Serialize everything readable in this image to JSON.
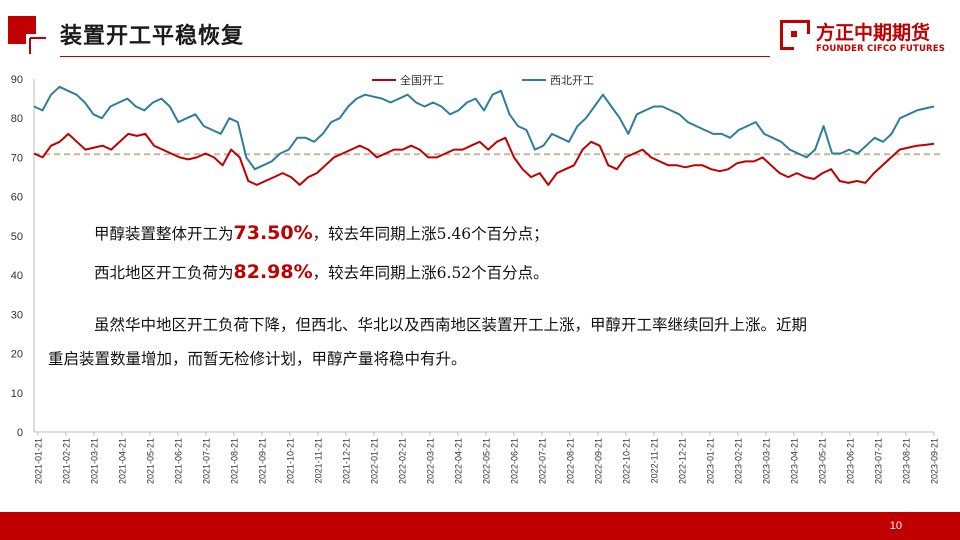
{
  "header": {
    "title": "装置开工平稳恢复",
    "brand_cn": "方正中期期货",
    "brand_en": "FOUNDER CIFCO FUTURES",
    "accent_color": "#c00000"
  },
  "notes": {
    "line1_pre": "甲醇装置整体开工为",
    "line1_value": "73.50%",
    "line1_post": "，较去年同期上涨5.46个百分点；",
    "line2_pre": "西北地区开工负荷为",
    "line2_value": "82.98%",
    "line2_post": "，较去年同期上涨6.52个百分点。",
    "para_line1": "虽然华中地区开工负荷下降，但西北、华北以及西南地区装置开工上涨，甲醇开工率继续回升上涨。近期",
    "para_line2": "重启装置数量增加，而暂无检修计划，甲醇产量将稳中有升。"
  },
  "footer": {
    "page_number": "10"
  },
  "chart_data": {
    "type": "line",
    "title": "",
    "xlabel": "",
    "ylabel": "",
    "ylim": [
      0,
      90
    ],
    "yticks": [
      0,
      10,
      20,
      30,
      40,
      50,
      60,
      70,
      80,
      90
    ],
    "grid": false,
    "legend_position": "top",
    "x_ticks": [
      "2021-01-21",
      "2021-02-21",
      "2021-03-21",
      "2021-04-21",
      "2021-05-21",
      "2021-06-21",
      "2021-07-21",
      "2021-08-21",
      "2021-09-21",
      "2021-10-21",
      "2021-11-21",
      "2021-12-21",
      "2022-01-21",
      "2022-02-21",
      "2022-03-21",
      "2022-04-21",
      "2022-05-21",
      "2022-06-21",
      "2022-07-21",
      "2022-08-21",
      "2022-09-21",
      "2022-10-21",
      "2022-11-21",
      "2022-12-21",
      "2023-01-21",
      "2023-02-21",
      "2023-03-21",
      "2023-04-21",
      "2023-05-21",
      "2023-06-21",
      "2023-07-21",
      "2023-08-21",
      "2023-09-21"
    ],
    "reference_line": {
      "value": 70.8,
      "style": "dashed",
      "color": "#c9b79c"
    },
    "series": [
      {
        "name": "全国开工",
        "color": "#c00000",
        "values": [
          71,
          70,
          73,
          74,
          76,
          74,
          72,
          72.5,
          73,
          72,
          74,
          76,
          75.5,
          76,
          73,
          72,
          71,
          70,
          69.5,
          70,
          71,
          70,
          68,
          72,
          70,
          64,
          63,
          64,
          65,
          66,
          65,
          63,
          65,
          66,
          68,
          70,
          71,
          72,
          73,
          72,
          70,
          71,
          72,
          72,
          73,
          72,
          70,
          70,
          71,
          72,
          72,
          73,
          74,
          72,
          74,
          75,
          70,
          67,
          65,
          66,
          63,
          66,
          67,
          68,
          72,
          74,
          73,
          68,
          67,
          70,
          71,
          72,
          70,
          69,
          68,
          68,
          67.5,
          68,
          68,
          67,
          66.5,
          67,
          68.5,
          69,
          69,
          70,
          68,
          66,
          65,
          66,
          65,
          64.5,
          66,
          67,
          64,
          63.5,
          64,
          63.5,
          66,
          68,
          70,
          72,
          72.5,
          73,
          73.2,
          73.5
        ]
      },
      {
        "name": "西北开工",
        "color": "#2e7d9a",
        "values": [
          83,
          82,
          86,
          88,
          87,
          86,
          84,
          81,
          80,
          83,
          84,
          85,
          83,
          82,
          84,
          85,
          83,
          79,
          80,
          81,
          78,
          77,
          76,
          80,
          79,
          70,
          67,
          68,
          69,
          71,
          72,
          75,
          75,
          74,
          76,
          79,
          80,
          83,
          85,
          86,
          85.5,
          85,
          84,
          85,
          86,
          84,
          83,
          84,
          83,
          81,
          82,
          84,
          85,
          82,
          86,
          87,
          81,
          78,
          77,
          72,
          73,
          76,
          75,
          74,
          78,
          80,
          83,
          86,
          83,
          80,
          76,
          81,
          82,
          83,
          83,
          82,
          81,
          79,
          78,
          77,
          76,
          76,
          75,
          77,
          78,
          79,
          76,
          75,
          74,
          72,
          71,
          70,
          72,
          78,
          71,
          71,
          72,
          71,
          73,
          75,
          74,
          76,
          80,
          81,
          82,
          82.5,
          82.98
        ]
      }
    ]
  }
}
